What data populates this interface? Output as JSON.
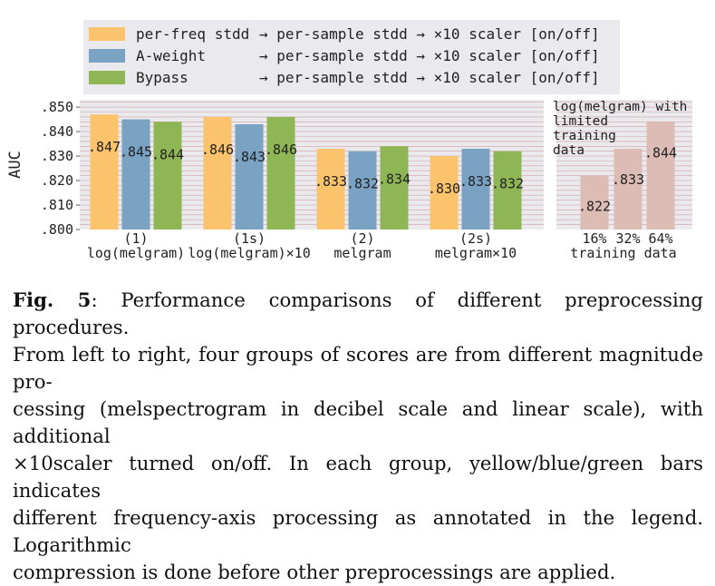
{
  "colors": {
    "yellow": "#fbc36b",
    "blue": "#7aa3c3",
    "green": "#8fb654",
    "pink": "#dcbcb4",
    "panel": "#e9e9ee",
    "grid": "#d4a1a1"
  },
  "legend": [
    {
      "label": "per-freq stdd",
      "chain": "→ per-sample stdd → ×10 scaler [on/off]",
      "color": "#fbc36b"
    },
    {
      "label": "A-weight",
      "chain": "→ per-sample stdd → ×10 scaler [on/off]",
      "color": "#7aa3c3"
    },
    {
      "label": "Bypass",
      "chain": "→ per-sample stdd → ×10 scaler [on/off]",
      "color": "#8fb654"
    }
  ],
  "chart_data": [
    {
      "type": "bar",
      "ylabel": "AUC",
      "ylim": [
        0.8,
        0.853
      ],
      "yticks": [
        ".800",
        ".810",
        ".820",
        ".830",
        ".840",
        ".850"
      ],
      "ytick_values": [
        0.8,
        0.81,
        0.82,
        0.83,
        0.84,
        0.85
      ],
      "legend_position": "top",
      "grid": true,
      "categories": [
        {
          "id": "(1)",
          "name": "log(melgram)"
        },
        {
          "id": "(1s)",
          "name": "log(melgram)×10"
        },
        {
          "id": "(2)",
          "name": "melgram"
        },
        {
          "id": "(2s)",
          "name": "melgram×10"
        }
      ],
      "series": [
        {
          "name": "per-freq stdd",
          "color": "#fbc36b",
          "values": [
            0.847,
            0.846,
            0.833,
            0.83
          ],
          "labels": [
            ".847",
            ".846",
            ".833",
            ".830"
          ]
        },
        {
          "name": "A-weight",
          "color": "#7aa3c3",
          "values": [
            0.845,
            0.843,
            0.832,
            0.833
          ],
          "labels": [
            ".845",
            ".843",
            ".832",
            ".833"
          ]
        },
        {
          "name": "Bypass",
          "color": "#8fb654",
          "values": [
            0.844,
            0.846,
            0.834,
            0.832
          ],
          "labels": [
            ".844",
            ".846",
            ".834",
            ".832"
          ]
        }
      ]
    },
    {
      "type": "bar",
      "annotation": "log(melgram) with limited training data",
      "annotation_lines": [
        "log(melgram) with",
        "limited",
        "training",
        "data"
      ],
      "xlabel": "training data",
      "categories": [
        "16%",
        "32%",
        "64%"
      ],
      "values": [
        0.822,
        0.833,
        0.844
      ],
      "labels": [
        ".822",
        ".833",
        ".844"
      ],
      "ylim": [
        0.8,
        0.853
      ],
      "color": "#dcbcb4"
    }
  ],
  "caption": {
    "fig_label": "Fig. 5",
    "lines": [
      ": Performance comparisons of different preprocessing procedures.",
      "From left to right, four groups of scores are from different magnitude pro-",
      "cessing (melspectrogram in decibel scale and linear scale), with additional",
      "×10scaler turned on/off. In each group, yellow/blue/green bars indicates",
      "different frequency-axis processing as annotated in the legend. Logarithmic",
      "compression is done before other preprocessings are applied."
    ]
  }
}
